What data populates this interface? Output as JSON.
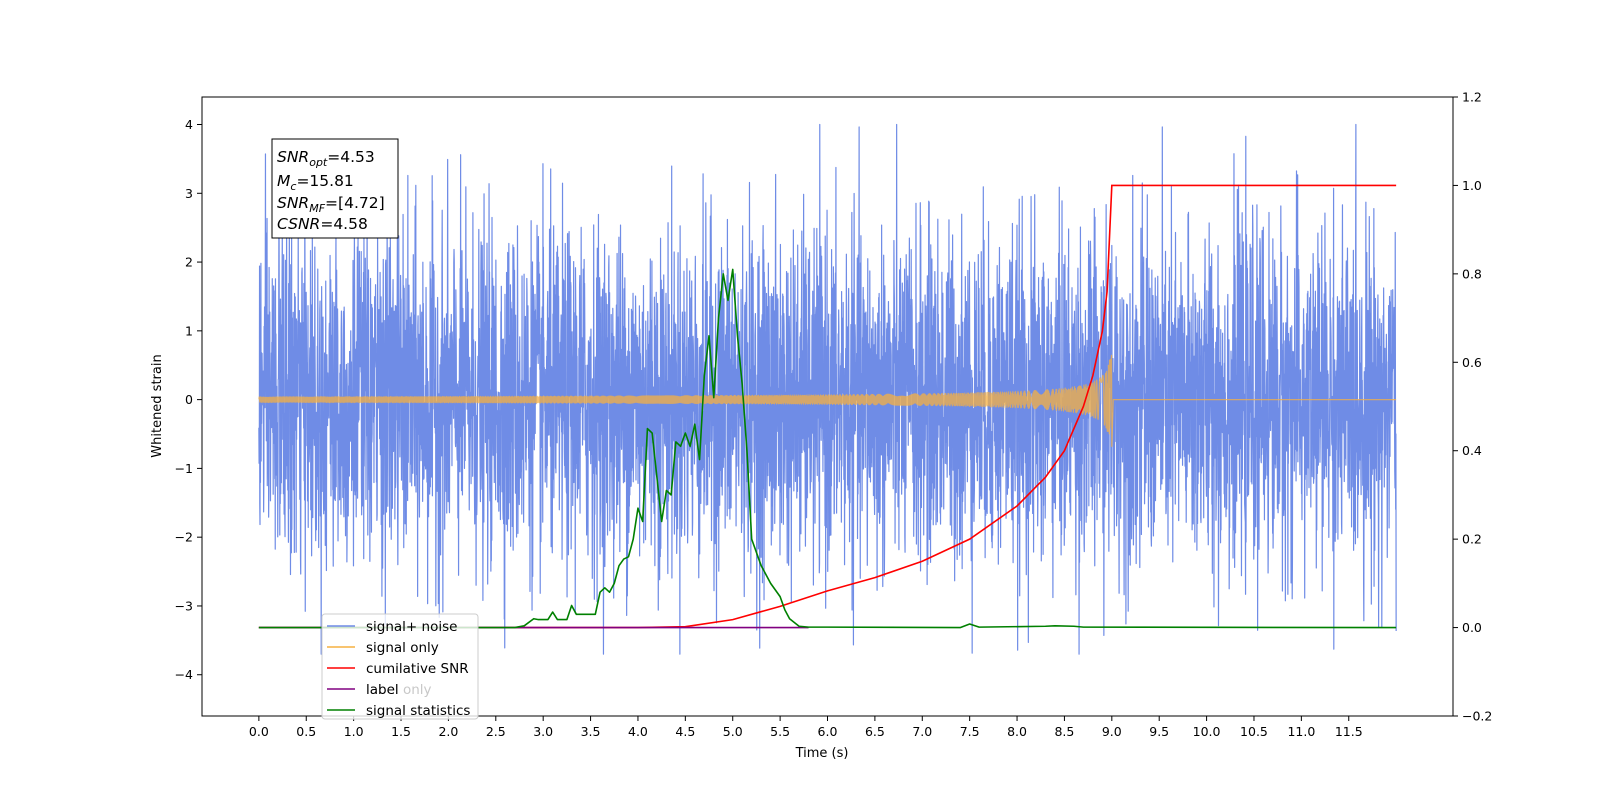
{
  "chart_data": {
    "type": "line",
    "xlabel": "Time (s)",
    "ylabel": "Whitened strain",
    "xlim": [
      -0.6,
      12.6
    ],
    "ylim": [
      -4.6,
      4.4
    ],
    "ylim_right": [
      -0.2,
      1.2
    ],
    "x_ticks": [
      "0.0",
      "0.5",
      "1.0",
      "1.5",
      "2.0",
      "2.5",
      "3.0",
      "3.5",
      "4.0",
      "4.5",
      "5.0",
      "5.5",
      "6.0",
      "6.5",
      "7.0",
      "7.5",
      "8.0",
      "8.5",
      "9.0",
      "9.5",
      "10.0",
      "10.5",
      "11.0",
      "11.5"
    ],
    "y_ticks": [
      "4",
      "3",
      "2",
      "1",
      "0",
      "−1",
      "−2",
      "−3",
      "−4"
    ],
    "y_ticks_right": [
      "1.2",
      "1.0",
      "0.8",
      "0.6",
      "0.4",
      "0.2",
      "0.0",
      "−0.2"
    ],
    "annotation": {
      "snr_opt": {
        "base": "SNR",
        "sub": "opt",
        "value": "=4.53"
      },
      "mc": {
        "base": "M",
        "sub": "c",
        "value": "=15.81"
      },
      "snr_mf": {
        "base": "SNR",
        "sub": "MF",
        "value": "=[4.72]"
      },
      "csnr": {
        "base": "CSNR",
        "sub": "",
        "value": "=4.58"
      }
    },
    "legend": {
      "placement": "lower-left",
      "entries": [
        "signal+ noise",
        "signal only",
        "cumilative SNR",
        "label",
        "signal statistics"
      ],
      "hidden_text": "label only"
    },
    "series": [
      {
        "name": "signal+ noise",
        "axis": "left",
        "color": "#6f8ce6",
        "description_kind": "noise",
        "duration": 12.0,
        "std": 1.2
      },
      {
        "name": "signal only",
        "axis": "left",
        "color": "#f5b041",
        "chirp_end": 9.0,
        "peak_amplitude": 0.85
      },
      {
        "name": "cumilative SNR",
        "axis": "right",
        "color": "#ff0000",
        "x": [
          0.0,
          3.0,
          4.0,
          4.5,
          5.0,
          5.5,
          6.0,
          6.5,
          7.0,
          7.5,
          8.0,
          8.3,
          8.5,
          8.7,
          8.8,
          8.9,
          8.95,
          9.0,
          12.0
        ],
        "y": [
          0.0,
          0.0,
          0.0,
          0.002,
          0.018,
          0.048,
          0.083,
          0.113,
          0.15,
          0.2,
          0.275,
          0.34,
          0.4,
          0.5,
          0.57,
          0.67,
          0.76,
          1.0,
          1.0
        ]
      },
      {
        "name": "label",
        "axis": "right",
        "color": "#800080",
        "x": [
          0.0,
          5.8
        ],
        "y": [
          0.0,
          0.0
        ]
      },
      {
        "name": "signal statistics",
        "axis": "right",
        "color": "#008000",
        "x": [
          0.0,
          2.7,
          2.8,
          2.9,
          2.95,
          3.05,
          3.1,
          3.15,
          3.25,
          3.3,
          3.35,
          3.45,
          3.55,
          3.6,
          3.65,
          3.7,
          3.75,
          3.8,
          3.85,
          3.9,
          3.95,
          4.0,
          4.05,
          4.1,
          4.15,
          4.25,
          4.3,
          4.35,
          4.4,
          4.45,
          4.5,
          4.55,
          4.6,
          4.65,
          4.7,
          4.75,
          4.8,
          4.85,
          4.9,
          4.95,
          5.0,
          5.05,
          5.1,
          5.15,
          5.2,
          5.3,
          5.4,
          5.5,
          5.55,
          5.6,
          5.7,
          5.8,
          6.0,
          7.4,
          7.5,
          7.6,
          8.3,
          8.4,
          8.6,
          8.7,
          12.0
        ],
        "y": [
          0.0,
          0.0,
          0.004,
          0.02,
          0.018,
          0.018,
          0.035,
          0.018,
          0.018,
          0.05,
          0.03,
          0.03,
          0.03,
          0.08,
          0.09,
          0.08,
          0.1,
          0.14,
          0.155,
          0.16,
          0.2,
          0.27,
          0.24,
          0.45,
          0.44,
          0.24,
          0.31,
          0.3,
          0.42,
          0.41,
          0.44,
          0.41,
          0.46,
          0.38,
          0.57,
          0.66,
          0.52,
          0.7,
          0.8,
          0.74,
          0.81,
          0.66,
          0.55,
          0.4,
          0.2,
          0.14,
          0.1,
          0.07,
          0.04,
          0.02,
          0.003,
          0.001,
          0.001,
          0.0,
          0.008,
          0.001,
          0.003,
          0.004,
          0.003,
          0.001,
          0.0
        ]
      }
    ]
  }
}
